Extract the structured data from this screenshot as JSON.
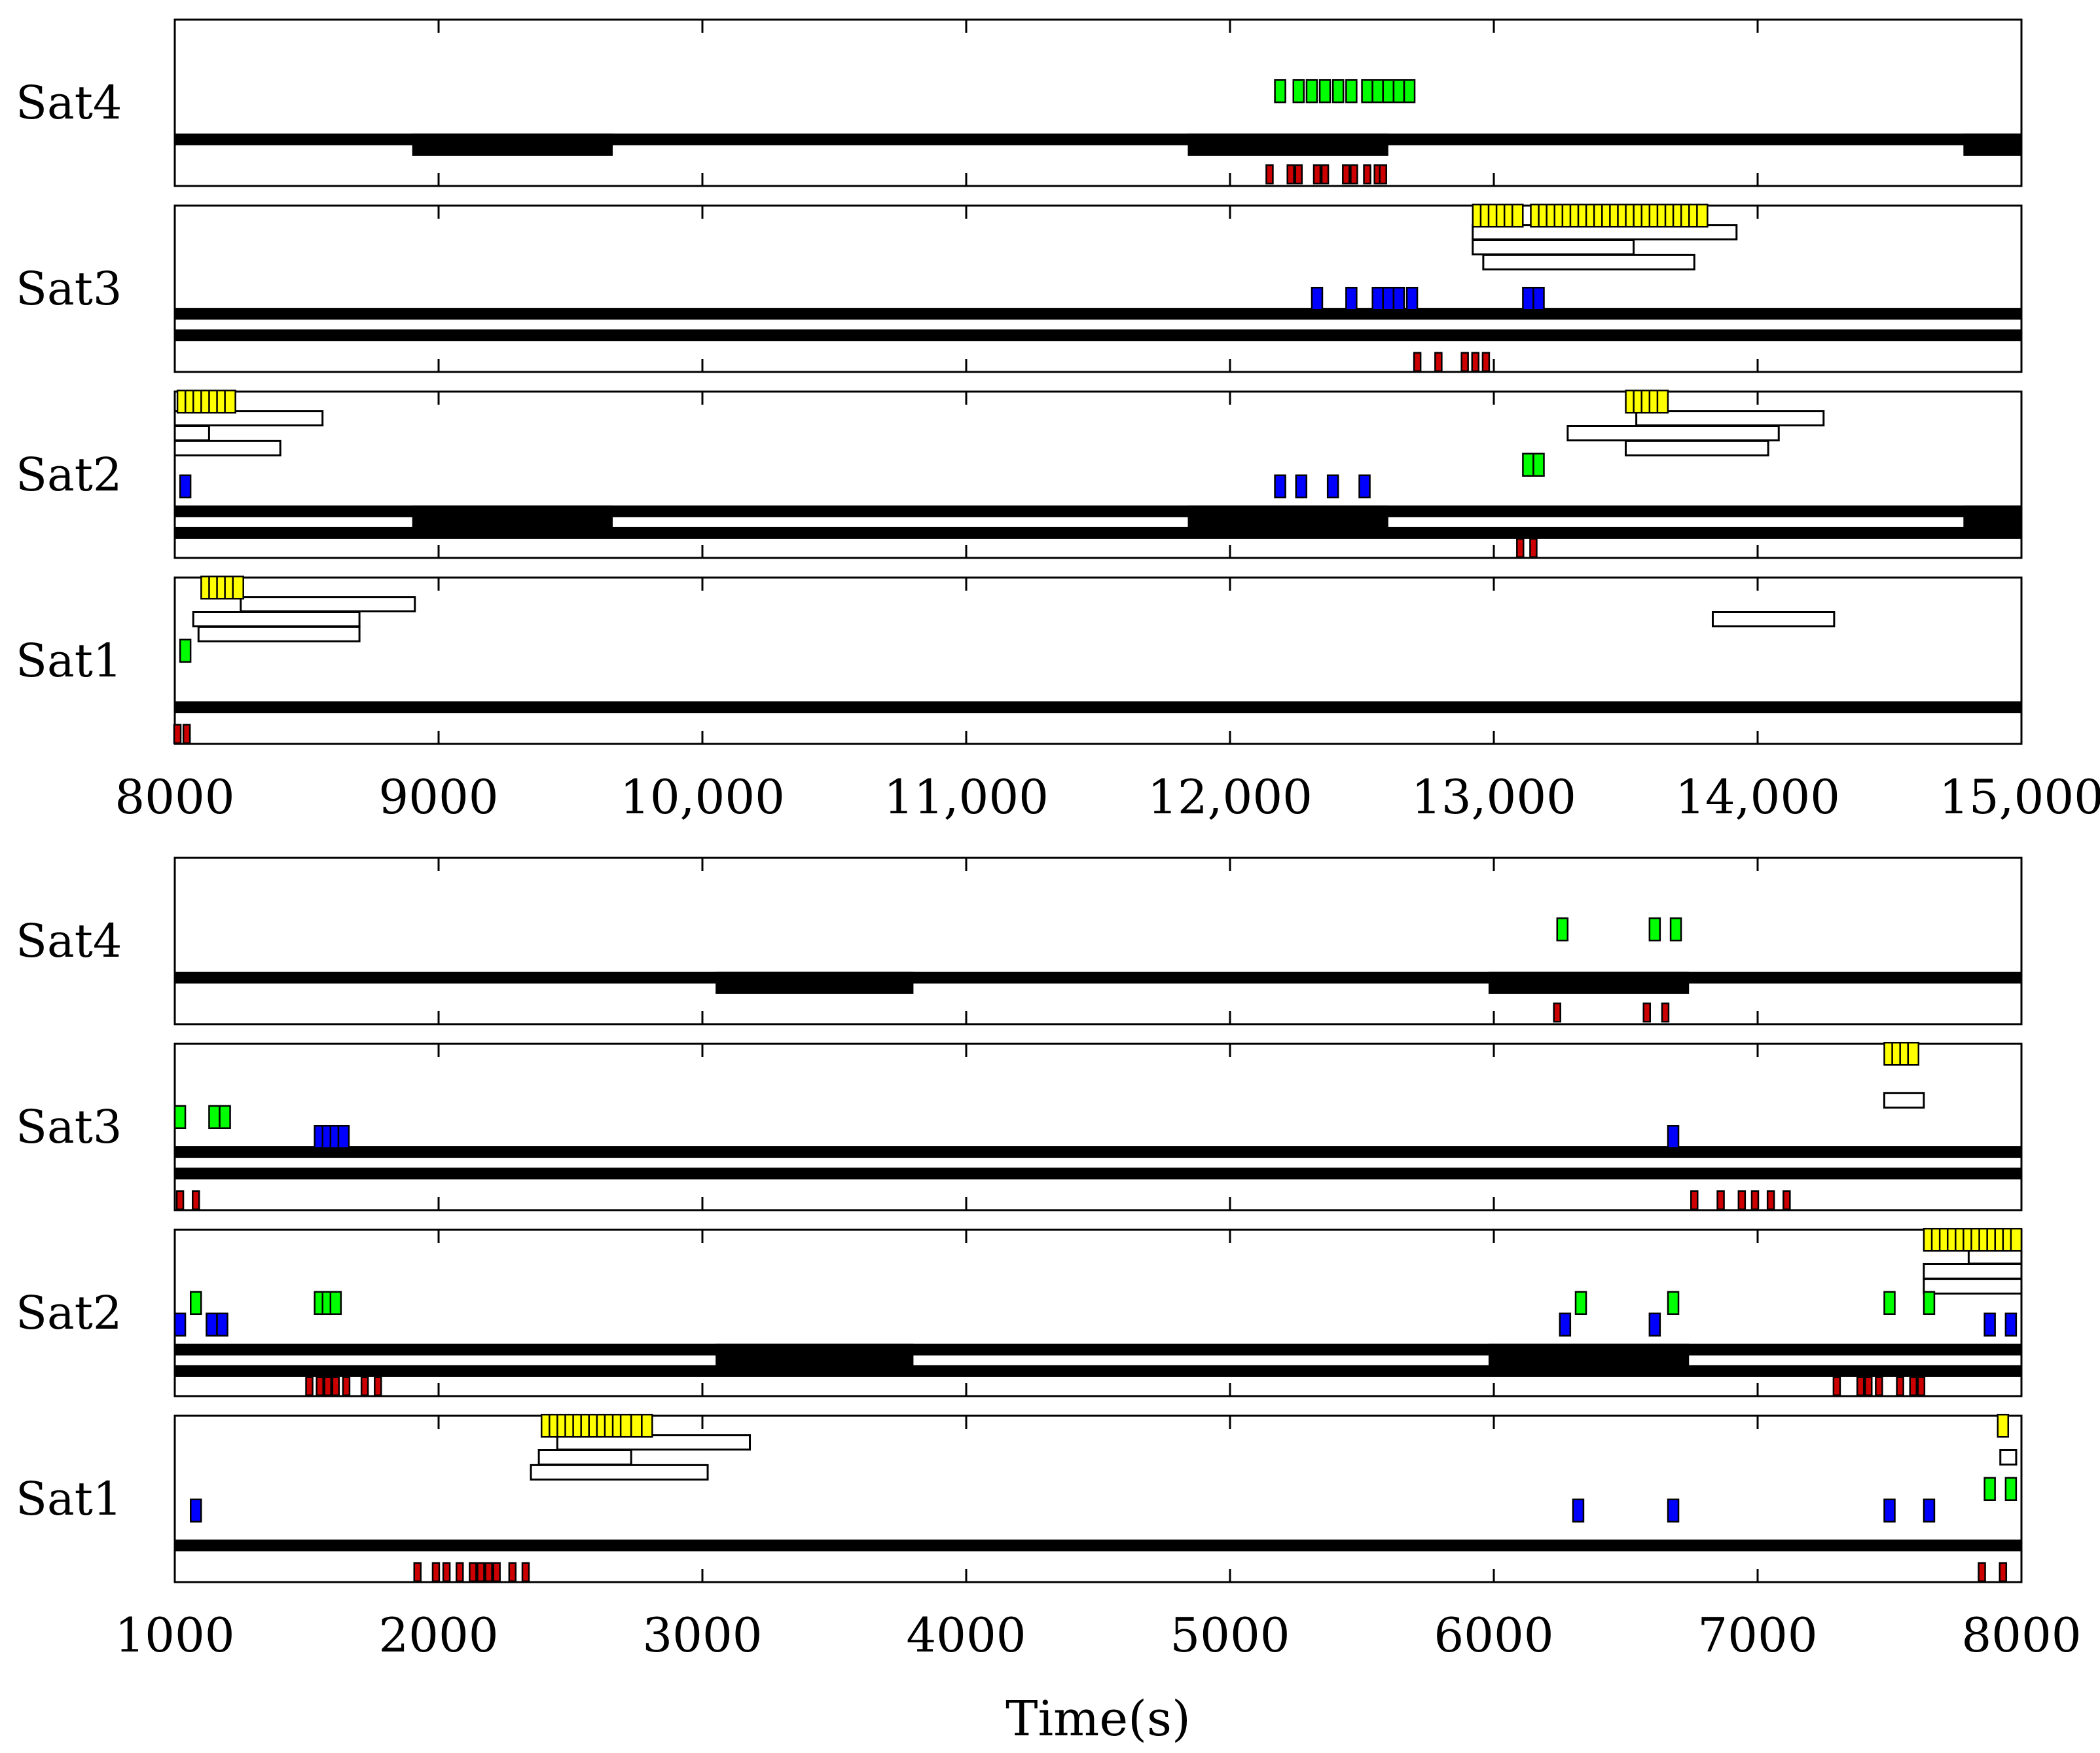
{
  "chart_data": [
    {
      "type": "timeline",
      "title": "",
      "xlabel": "",
      "xlim": [
        8000,
        15000
      ],
      "xticks": [
        8000,
        9000,
        10000,
        11000,
        12000,
        13000,
        14000,
        15000
      ],
      "xtick_labels": [
        "8000",
        "9000",
        "10,000",
        "11,000",
        "12,000",
        "13,000",
        "14,000",
        "15,000"
      ],
      "grid": false,
      "colors": {
        "task_yellow": "#ffff00",
        "task_green": "#00ff00",
        "task_blue": "#0000ff",
        "task_red": "#cc0000",
        "bar": "#000000",
        "window": "#ffffff"
      },
      "rows": [
        {
          "label": "Sat4",
          "bars": [
            {
              "start": 8000,
              "end": 15000,
              "level": 0.72,
              "thick": 1
            },
            {
              "start": 8900,
              "end": 9660,
              "level": 0.72,
              "thick": 2
            },
            {
              "start": 11840,
              "end": 12600,
              "level": 0.72,
              "thick": 2
            },
            {
              "start": 14780,
              "end": 15000,
              "level": 0.72,
              "thick": 2
            }
          ],
          "windows": [],
          "tasks": [
            {
              "color": "task_green",
              "level": 0.43,
              "times": [
                12190,
                12260,
                12310,
                12360,
                12410,
                12460,
                12520,
                12560,
                12600,
                12640,
                12680
              ]
            },
            {
              "color": "task_red",
              "level": 0.93,
              "times": [
                12150,
                12230,
                12260,
                12330,
                12360,
                12440,
                12470,
                12520,
                12560,
                12580
              ]
            }
          ]
        },
        {
          "label": "Sat3",
          "bars": [
            {
              "start": 8000,
              "end": 15000,
              "level": 0.65,
              "thick": 1
            },
            {
              "start": 8000,
              "end": 15000,
              "level": 0.78,
              "thick": 1
            }
          ],
          "windows": [
            {
              "start": 12920,
              "end": 13920,
              "level": 0.16
            },
            {
              "start": 12920,
              "end": 13530,
              "level": 0.25
            },
            {
              "start": 12960,
              "end": 13760,
              "level": 0.34
            }
          ],
          "tasks": [
            {
              "color": "task_yellow",
              "level": 0.06,
              "times": [
                12940,
                12970,
                13000,
                13030,
                13060,
                13090,
                13160,
                13190,
                13220,
                13250,
                13280,
                13310,
                13340,
                13370,
                13400,
                13430,
                13460,
                13490,
                13520,
                13550,
                13580,
                13610,
                13640,
                13670,
                13700,
                13730,
                13760,
                13790
              ]
            },
            {
              "color": "task_blue",
              "level": 0.56,
              "times": [
                12330,
                12460,
                12560,
                12600,
                12640,
                12690,
                13130,
                13170
              ]
            },
            {
              "color": "task_red",
              "level": 0.94,
              "times": [
                12710,
                12790,
                12890,
                12930,
                12970
              ]
            }
          ]
        },
        {
          "label": "Sat2",
          "bars": [
            {
              "start": 8000,
              "end": 15000,
              "level": 0.72,
              "thick": 1
            },
            {
              "start": 8900,
              "end": 9660,
              "level": 0.72,
              "thick": 2
            },
            {
              "start": 11840,
              "end": 12600,
              "level": 0.72,
              "thick": 2
            },
            {
              "start": 14780,
              "end": 15000,
              "level": 0.72,
              "thick": 2
            },
            {
              "start": 8000,
              "end": 15000,
              "level": 0.85,
              "thick": 1
            }
          ],
          "windows": [
            {
              "start": 8000,
              "end": 8560,
              "level": 0.16
            },
            {
              "start": 8000,
              "end": 8130,
              "level": 0.25
            },
            {
              "start": 8000,
              "end": 8400,
              "level": 0.34
            },
            {
              "start": 13540,
              "end": 14250,
              "level": 0.16
            },
            {
              "start": 13280,
              "end": 14080,
              "level": 0.25
            },
            {
              "start": 13500,
              "end": 14040,
              "level": 0.34
            }
          ],
          "tasks": [
            {
              "color": "task_yellow",
              "level": 0.06,
              "times": [
                8030,
                8060,
                8090,
                8120,
                8150,
                8180,
                8210,
                13520,
                13550,
                13580,
                13610,
                13640
              ]
            },
            {
              "color": "task_green",
              "level": 0.44,
              "times": [
                13130,
                13170
              ]
            },
            {
              "color": "task_blue",
              "level": 0.57,
              "times": [
                8040,
                12190,
                12270,
                12390,
                12510
              ]
            },
            {
              "color": "task_red",
              "level": 0.94,
              "times": [
                13100,
                13150
              ]
            }
          ]
        },
        {
          "label": "Sat1",
          "bars": [
            {
              "start": 8000,
              "end": 15000,
              "level": 0.78,
              "thick": 1
            }
          ],
          "windows": [
            {
              "start": 8250,
              "end": 8910,
              "level": 0.16
            },
            {
              "start": 8070,
              "end": 8700,
              "level": 0.25
            },
            {
              "start": 8090,
              "end": 8700,
              "level": 0.34
            },
            {
              "start": 13830,
              "end": 14290,
              "level": 0.25
            }
          ],
          "tasks": [
            {
              "color": "task_yellow",
              "level": 0.06,
              "times": [
                8120,
                8150,
                8180,
                8210,
                8240
              ]
            },
            {
              "color": "task_green",
              "level": 0.44,
              "times": [
                8040
              ]
            },
            {
              "color": "task_red",
              "level": 0.94,
              "times": [
                8010,
                8045
              ]
            }
          ]
        }
      ]
    },
    {
      "type": "timeline",
      "title": "",
      "xlabel": "Time(s)",
      "xlim": [
        1000,
        8000
      ],
      "xticks": [
        1000,
        2000,
        3000,
        4000,
        5000,
        6000,
        7000,
        8000
      ],
      "xtick_labels": [
        "1000",
        "2000",
        "3000",
        "4000",
        "5000",
        "6000",
        "7000",
        "8000"
      ],
      "grid": false,
      "colors": {
        "task_yellow": "#ffff00",
        "task_green": "#00ff00",
        "task_blue": "#0000ff",
        "task_red": "#cc0000",
        "bar": "#000000",
        "window": "#ffffff"
      },
      "rows": [
        {
          "label": "Sat4",
          "bars": [
            {
              "start": 1000,
              "end": 8000,
              "level": 0.72,
              "thick": 1
            },
            {
              "start": 3050,
              "end": 3800,
              "level": 0.72,
              "thick": 2
            },
            {
              "start": 5980,
              "end": 6740,
              "level": 0.72,
              "thick": 2
            }
          ],
          "windows": [],
          "tasks": [
            {
              "color": "task_green",
              "level": 0.43,
              "times": [
                6260,
                6610,
                6690
              ]
            },
            {
              "color": "task_red",
              "level": 0.93,
              "times": [
                6240,
                6580,
                6650
              ]
            }
          ]
        },
        {
          "label": "Sat3",
          "bars": [
            {
              "start": 1000,
              "end": 8000,
              "level": 0.65,
              "thick": 1
            },
            {
              "start": 1000,
              "end": 8000,
              "level": 0.78,
              "thick": 1
            }
          ],
          "windows": [
            {
              "start": 7480,
              "end": 7630,
              "level": 0.34
            }
          ],
          "tasks": [
            {
              "color": "task_yellow",
              "level": 0.06,
              "times": [
                7500,
                7530,
                7560,
                7590
              ]
            },
            {
              "color": "task_green",
              "level": 0.44,
              "times": [
                1020,
                1150,
                1190
              ]
            },
            {
              "color": "task_blue",
              "level": 0.56,
              "times": [
                1550,
                1580,
                1610,
                1640,
                6680
              ]
            },
            {
              "color": "task_red",
              "level": 0.94,
              "times": [
                1020,
                1080,
                6760,
                6860,
                6940,
                6990,
                7050,
                7110
              ]
            }
          ]
        },
        {
          "label": "Sat2",
          "bars": [
            {
              "start": 1000,
              "end": 8000,
              "level": 0.72,
              "thick": 1
            },
            {
              "start": 3050,
              "end": 3800,
              "level": 0.72,
              "thick": 2
            },
            {
              "start": 5980,
              "end": 6740,
              "level": 0.72,
              "thick": 2
            },
            {
              "start": 1000,
              "end": 8000,
              "level": 0.85,
              "thick": 1
            }
          ],
          "windows": [
            {
              "start": 7800,
              "end": 8000,
              "level": 0.16
            },
            {
              "start": 7630,
              "end": 8000,
              "level": 0.25
            },
            {
              "start": 7630,
              "end": 8000,
              "level": 0.34
            }
          ],
          "tasks": [
            {
              "color": "task_yellow",
              "level": 0.06,
              "times": [
                7650,
                7680,
                7710,
                7740,
                7770,
                7800,
                7830,
                7860,
                7890,
                7920,
                7950,
                7980
              ]
            },
            {
              "color": "task_green",
              "level": 0.44,
              "times": [
                1080,
                1550,
                1580,
                1610,
                6330,
                6680,
                7500,
                7650
              ]
            },
            {
              "color": "task_blue",
              "level": 0.57,
              "times": [
                1020,
                1140,
                1180,
                6270,
                6610,
                7880,
                7960
              ]
            },
            {
              "color": "task_red",
              "level": 0.94,
              "times": [
                1510,
                1550,
                1580,
                1610,
                1650,
                1720,
                1770,
                7300,
                7390,
                7420,
                7460,
                7540,
                7590,
                7620
              ]
            }
          ]
        },
        {
          "label": "Sat1",
          "bars": [
            {
              "start": 1000,
              "end": 8000,
              "level": 0.78,
              "thick": 1
            }
          ],
          "windows": [
            {
              "start": 2450,
              "end": 3180,
              "level": 0.16
            },
            {
              "start": 2380,
              "end": 2730,
              "level": 0.25
            },
            {
              "start": 2350,
              "end": 3020,
              "level": 0.34
            },
            {
              "start": 7920,
              "end": 7980,
              "level": 0.25
            }
          ],
          "tasks": [
            {
              "color": "task_yellow",
              "level": 0.06,
              "times": [
                2410,
                2440,
                2470,
                2500,
                2530,
                2560,
                2590,
                2620,
                2650,
                2680,
                2710,
                2750,
                2790,
                7930
              ]
            },
            {
              "color": "task_green",
              "level": 0.44,
              "times": [
                7880,
                7960
              ]
            },
            {
              "color": "task_blue",
              "level": 0.57,
              "times": [
                1080,
                6320,
                6680,
                7500,
                7650
              ]
            },
            {
              "color": "task_red",
              "level": 0.94,
              "times": [
                1920,
                1990,
                2030,
                2080,
                2130,
                2160,
                2190,
                2220,
                2280,
                2330,
                7850,
                7930
              ]
            }
          ]
        }
      ]
    }
  ]
}
